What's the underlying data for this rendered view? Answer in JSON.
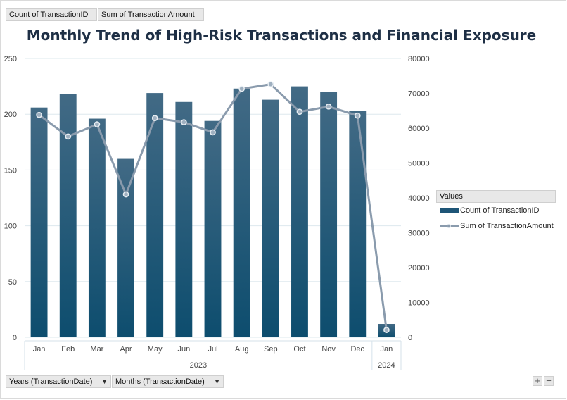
{
  "filters": {
    "value_fields": [
      "Count of TransactionID",
      "Sum of TransactionAmount"
    ],
    "axis_fields": [
      "Years (TransactionDate)",
      "Months (TransactionDate)"
    ]
  },
  "legend": {
    "header": "Values",
    "items": [
      {
        "label": "Count of TransactionID",
        "kind": "bar"
      },
      {
        "label": "Sum of TransactionAmount",
        "kind": "line"
      }
    ]
  },
  "chart_data": {
    "type": "bar",
    "title": "Monthly Trend of High-Risk Transactions and Financial Exposure",
    "categories": [
      "Jan",
      "Feb",
      "Mar",
      "Apr",
      "May",
      "Jun",
      "Jul",
      "Aug",
      "Sep",
      "Oct",
      "Nov",
      "Dec",
      "Jan"
    ],
    "groups": [
      {
        "label": "2023",
        "count": 12
      },
      {
        "label": "2024",
        "count": 1
      }
    ],
    "series": [
      {
        "name": "Count of TransactionID",
        "type": "bar",
        "axis": "left",
        "values": [
          206,
          218,
          196,
          160,
          219,
          211,
          194,
          223,
          213,
          225,
          220,
          203,
          12
        ]
      },
      {
        "name": "Sum of TransactionAmount",
        "type": "line",
        "axis": "right",
        "values": [
          63800,
          57600,
          61100,
          41000,
          62900,
          61700,
          58800,
          71300,
          72600,
          64700,
          66200,
          63600,
          2100
        ]
      }
    ],
    "y_left": {
      "min": 0,
      "max": 250,
      "ticks": [
        0,
        50,
        100,
        150,
        200,
        250
      ]
    },
    "y_right": {
      "min": 0,
      "max": 80000,
      "ticks": [
        0,
        10000,
        20000,
        30000,
        40000,
        50000,
        60000,
        70000,
        80000
      ]
    },
    "grid": true,
    "legend_position": "right",
    "colors": {
      "bar_top": "#426a85",
      "bar_bottom": "#0d4d6e",
      "line": "#8a9bad",
      "marker_fill": "#9fb0c0",
      "marker_stroke": "#e8eef3",
      "title": "#1e2f45"
    }
  },
  "zoom_controls": {
    "plus": "+",
    "minus": "−"
  }
}
